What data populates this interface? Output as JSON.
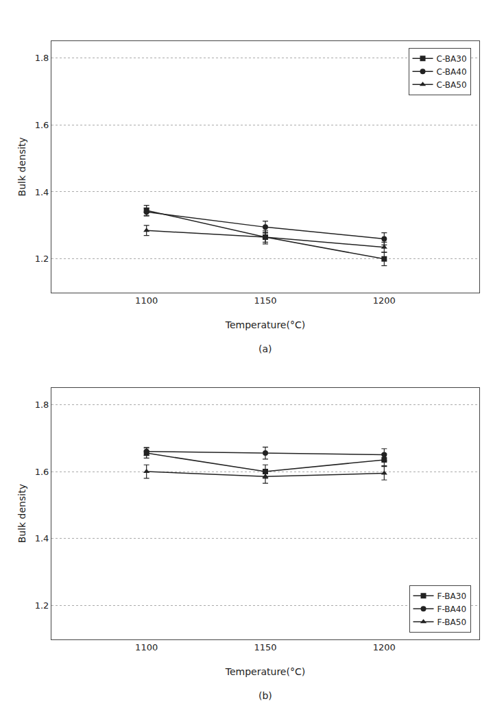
{
  "chart_data": [
    {
      "type": "line",
      "xlabel": "Temperature(°C)",
      "ylabel": "Bulk density",
      "x": [
        1100,
        1150,
        1200
      ],
      "series": [
        {
          "name": "C-BA30",
          "color": "#222222",
          "marker": "square",
          "values": [
            1.345,
            1.265,
            1.2
          ],
          "errors": [
            0.015,
            0.02,
            0.02
          ]
        },
        {
          "name": "C-BA40",
          "color": "#222222",
          "marker": "circle",
          "values": [
            1.34,
            1.295,
            1.26
          ],
          "errors": [
            0.012,
            0.018,
            0.018
          ]
        },
        {
          "name": "C-BA50",
          "color": "#222222",
          "marker": "triangle",
          "values": [
            1.285,
            1.265,
            1.235
          ],
          "errors": [
            0.015,
            0.015,
            0.015
          ]
        }
      ],
      "xlim": [
        1060,
        1240
      ],
      "xticks": [
        1100,
        1150,
        1200
      ],
      "ylim": [
        1.1,
        1.85
      ],
      "yticks": [
        1.2,
        1.4,
        1.6,
        1.8
      ],
      "grid": true,
      "legend": "upper right",
      "annotations": [
        "(a)"
      ]
    },
    {
      "type": "line",
      "xlabel": "Temperature(°C)",
      "ylabel": "Bulk density",
      "x": [
        1100,
        1150,
        1200
      ],
      "series": [
        {
          "name": "F-BA30",
          "color": "#222222",
          "marker": "square",
          "values": [
            1.655,
            1.6,
            1.635
          ],
          "errors": [
            0.015,
            0.02,
            0.018
          ]
        },
        {
          "name": "F-BA40",
          "color": "#222222",
          "marker": "circle",
          "values": [
            1.66,
            1.655,
            1.65
          ],
          "errors": [
            0.012,
            0.018,
            0.018
          ]
        },
        {
          "name": "F-BA50",
          "color": "#222222",
          "marker": "triangle",
          "values": [
            1.6,
            1.585,
            1.595
          ],
          "errors": [
            0.02,
            0.02,
            0.02
          ]
        }
      ],
      "xlim": [
        1060,
        1240
      ],
      "xticks": [
        1100,
        1150,
        1200
      ],
      "ylim": [
        1.1,
        1.85
      ],
      "yticks": [
        1.2,
        1.4,
        1.6,
        1.8
      ],
      "grid": true,
      "legend": "lower right",
      "annotations": [
        "(b)"
      ]
    }
  ]
}
